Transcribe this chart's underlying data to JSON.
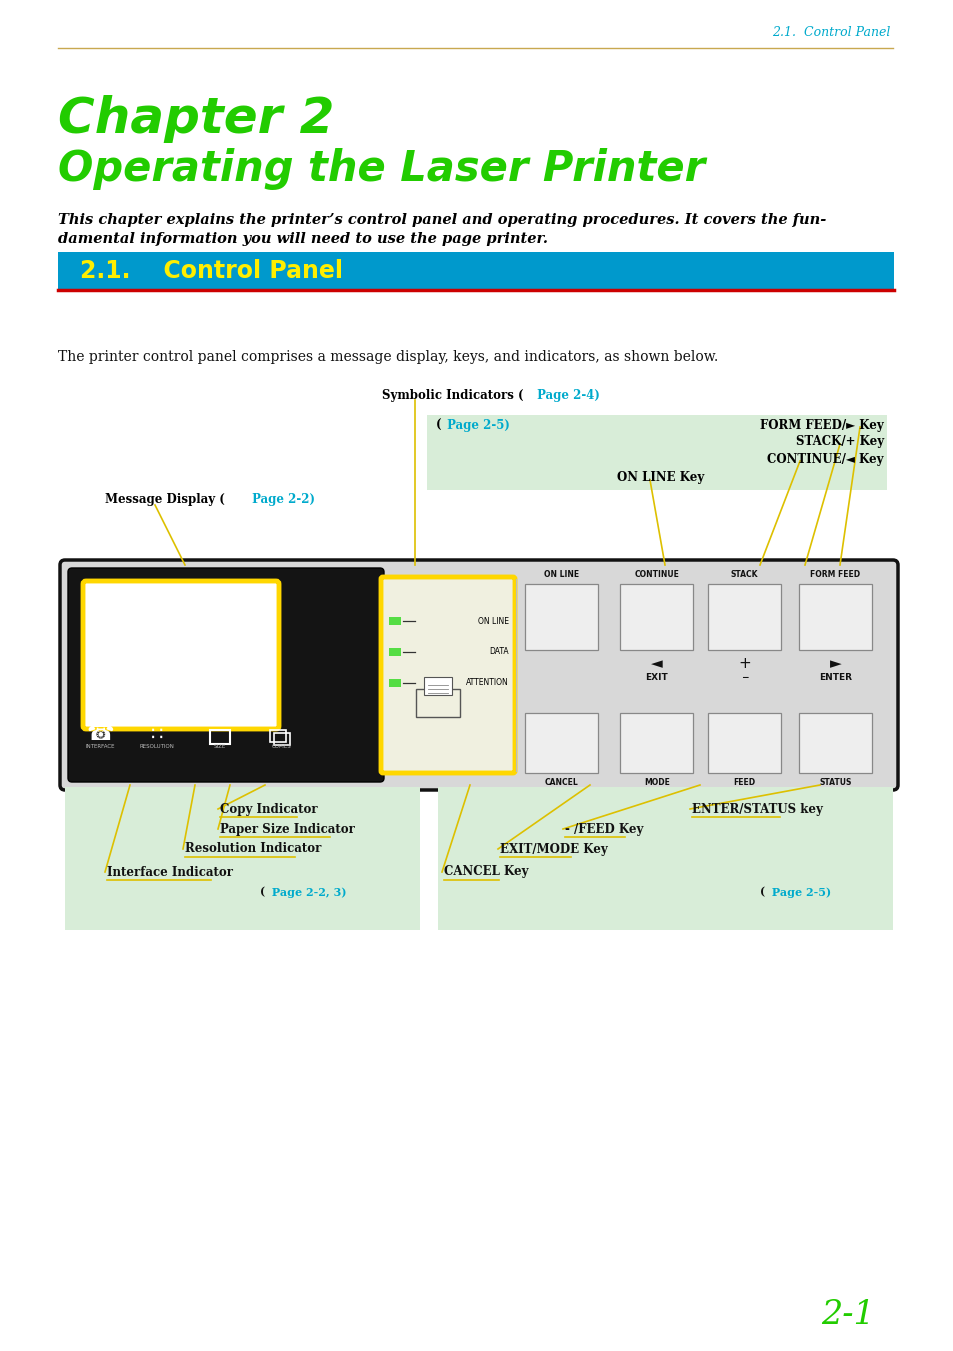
{
  "page_header": "2.1.  Control Panel",
  "header_line_color": "#C8A850",
  "header_text_color": "#00AACC",
  "chapter_title_line1": "Chapter 2",
  "chapter_title_line2": "Operating the Laser Printer",
  "chapter_title_color": "#22CC00",
  "intro_text_line1": "This chapter explains the printer’s control panel and operating procedures. It covers the fun-",
  "intro_text_line2": "damental information you will need to use the page printer.",
  "section_header_bg": "#0099CC",
  "section_header_text": "2.1.    Control Panel",
  "section_header_text_color": "#FFEE00",
  "section_underline_color": "#CC0000",
  "body_text": "The printer control panel comprises a message display, keys, and indicators, as shown below.",
  "page_number": "2-1",
  "page_number_color": "#22CC00",
  "link_color": "#00AACC",
  "bg_color": "#FFFFFF",
  "panel_bg": "#D8EDD8",
  "annotation_line_color": "#DDC000"
}
